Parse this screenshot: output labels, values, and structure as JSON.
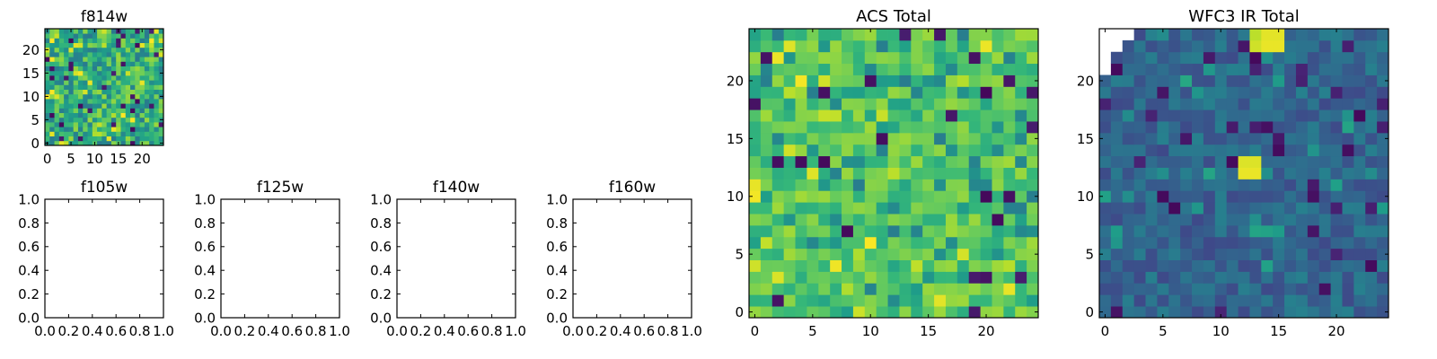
{
  "figure": {
    "background": "#ffffff",
    "colormap": "viridis"
  },
  "chart_data": [
    {
      "id": "f814w",
      "type": "heatmap",
      "title": "f814w",
      "grid_size": 25,
      "xlim": [
        -0.5,
        24.5
      ],
      "ylim": [
        -0.5,
        24.5
      ],
      "xticks": [
        0,
        5,
        10,
        15,
        20
      ],
      "yticks": [
        0,
        5,
        10,
        15,
        20
      ],
      "pattern": "uniform noise, mostly green/teal, scattered dark pixels",
      "seed": 11,
      "missing_cells": []
    },
    {
      "id": "f105w",
      "type": "empty",
      "title": "f105w",
      "xlim": [
        0,
        1
      ],
      "ylim": [
        0,
        1
      ],
      "xticks": [
        0.0,
        0.2,
        0.4,
        0.6,
        0.8,
        1.0
      ],
      "yticks": [
        0.0,
        0.2,
        0.4,
        0.6,
        0.8,
        1.0
      ]
    },
    {
      "id": "f125w",
      "type": "empty",
      "title": "f125w",
      "xlim": [
        0,
        1
      ],
      "ylim": [
        0,
        1
      ],
      "xticks": [
        0.0,
        0.2,
        0.4,
        0.6,
        0.8,
        1.0
      ],
      "yticks": [
        0.0,
        0.2,
        0.4,
        0.6,
        0.8,
        1.0
      ]
    },
    {
      "id": "f140w",
      "type": "empty",
      "title": "f140w",
      "xlim": [
        0,
        1
      ],
      "ylim": [
        0,
        1
      ],
      "xticks": [
        0.0,
        0.2,
        0.4,
        0.6,
        0.8,
        1.0
      ],
      "yticks": [
        0.0,
        0.2,
        0.4,
        0.6,
        0.8,
        1.0
      ]
    },
    {
      "id": "f160w",
      "type": "empty",
      "title": "f160w",
      "xlim": [
        0,
        1
      ],
      "ylim": [
        0,
        1
      ],
      "xticks": [
        0.0,
        0.2,
        0.4,
        0.6,
        0.8,
        1.0
      ],
      "yticks": [
        0.0,
        0.2,
        0.4,
        0.6,
        0.8,
        1.0
      ]
    },
    {
      "id": "acs-total",
      "type": "heatmap",
      "title": "ACS Total",
      "grid_size": 25,
      "xlim": [
        -0.5,
        24.5
      ],
      "ylim": [
        -0.5,
        24.5
      ],
      "xticks": [
        0,
        5,
        10,
        15,
        20
      ],
      "yticks": [
        0,
        5,
        10,
        15,
        20
      ],
      "pattern": "uniform noise, bright green/yellow, scattered dark pixels",
      "seed": 29,
      "missing_cells": []
    },
    {
      "id": "wfc3-ir-total",
      "type": "heatmap",
      "title": "WFC3 IR Total",
      "grid_size": 25,
      "xlim": [
        -0.5,
        24.5
      ],
      "ylim": [
        -0.5,
        24.5
      ],
      "xticks": [
        0,
        5,
        10,
        15,
        20
      ],
      "yticks": [
        0,
        5,
        10,
        15,
        20
      ],
      "pattern": "dark blue/teal noise with yellow hotspots",
      "seed": 47,
      "missing_cells": [
        [
          0,
          24
        ],
        [
          1,
          24
        ],
        [
          2,
          24
        ],
        [
          0,
          23
        ],
        [
          1,
          23
        ],
        [
          0,
          22
        ],
        [
          0,
          21
        ]
      ],
      "hotspots": [
        {
          "x": 14,
          "y": 24,
          "value": 0.96
        },
        {
          "x": 15,
          "y": 24,
          "value": 0.96
        },
        {
          "x": 13,
          "y": 24,
          "value": 0.9
        },
        {
          "x": 14,
          "y": 23,
          "value": 0.97
        },
        {
          "x": 15,
          "y": 23,
          "value": 0.97
        },
        {
          "x": 13,
          "y": 23,
          "value": 0.93
        },
        {
          "x": 12,
          "y": 12,
          "value": 0.97
        },
        {
          "x": 13,
          "y": 12,
          "value": 0.97
        },
        {
          "x": 12,
          "y": 13,
          "value": 0.95
        },
        {
          "x": 13,
          "y": 13,
          "value": 0.95
        }
      ]
    }
  ]
}
